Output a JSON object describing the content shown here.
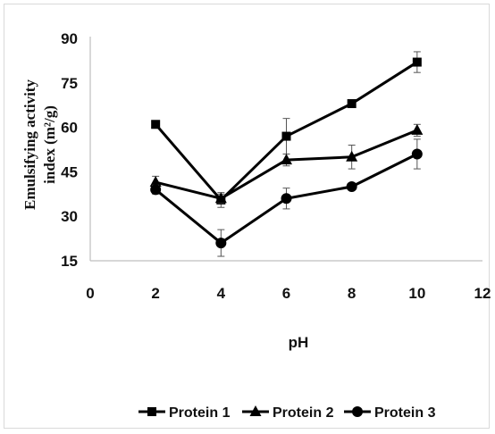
{
  "chart_data": {
    "type": "line",
    "title": "",
    "xlabel": "pH",
    "ylabel_lines": [
      "Emulsifying activity",
      "index (m²/g)"
    ],
    "xlim": [
      0,
      12
    ],
    "ylim": [
      15,
      90
    ],
    "xticks": [
      0,
      2,
      4,
      6,
      8,
      10,
      12
    ],
    "yticks": [
      15,
      30,
      45,
      60,
      75,
      90
    ],
    "x": [
      2,
      4,
      6,
      8,
      10
    ],
    "series": [
      {
        "name": "Protein 1",
        "marker": "square",
        "values": [
          61,
          35.5,
          57,
          68,
          82
        ],
        "errors": [
          0,
          2.5,
          6,
          1,
          3.5
        ]
      },
      {
        "name": "Protein 2",
        "marker": "triangle",
        "values": [
          41.5,
          36,
          49,
          50,
          59
        ],
        "errors": [
          2,
          1.5,
          2,
          4,
          2
        ]
      },
      {
        "name": "Protein 3",
        "marker": "circle",
        "values": [
          39,
          21,
          36,
          40,
          51
        ],
        "errors": [
          1.5,
          4.5,
          3.5,
          1,
          5
        ]
      }
    ],
    "grid": false,
    "legend": "bottom",
    "colors": {
      "line": "#000000",
      "axis": "#bfbfbf",
      "text": "#111111"
    }
  }
}
